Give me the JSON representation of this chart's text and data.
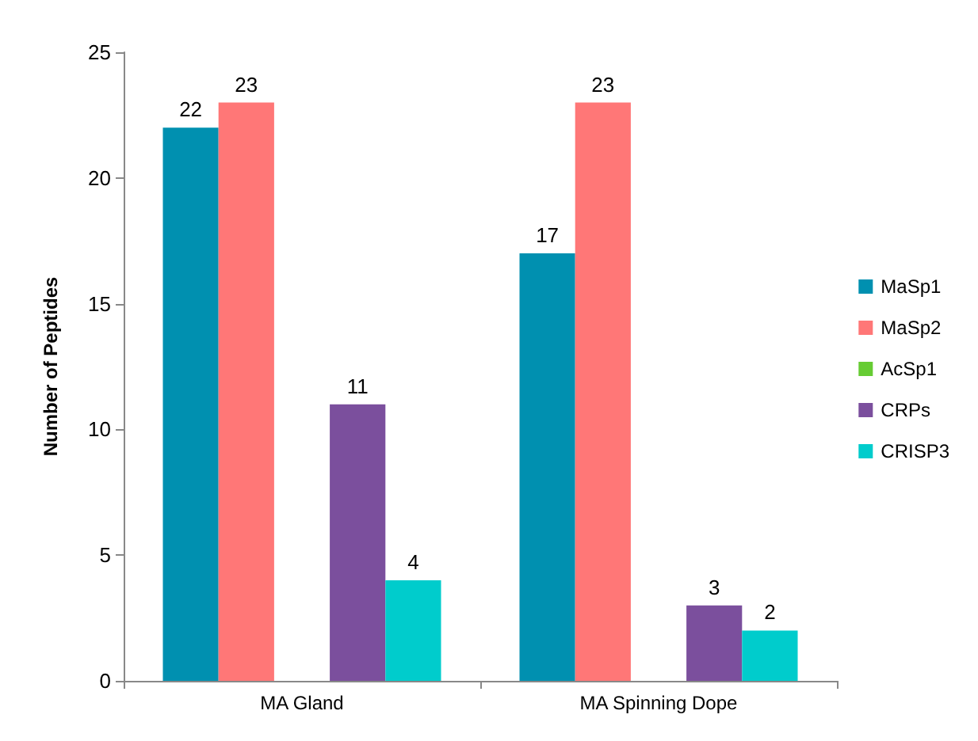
{
  "chart_data": {
    "type": "bar",
    "ylabel": "Number of Peptides",
    "categories": [
      "MA Gland",
      "MA Spinning Dope"
    ],
    "series": [
      {
        "name": "MaSp1",
        "color": "#0090b0",
        "values": [
          22,
          17
        ],
        "value_labels": [
          "22",
          "17"
        ]
      },
      {
        "name": "MaSp2",
        "color": "#ff7777",
        "values": [
          23,
          23
        ],
        "value_labels": [
          "23",
          "23"
        ]
      },
      {
        "name": "AcSp1",
        "color": "#66cc33",
        "values": [
          0,
          0
        ],
        "value_labels": [
          null,
          null
        ]
      },
      {
        "name": "CRPs",
        "color": "#7b4f9d",
        "values": [
          11,
          3
        ],
        "value_labels": [
          "11",
          "3"
        ]
      },
      {
        "name": "CRISP3",
        "color": "#00cccc",
        "values": [
          4,
          2
        ],
        "value_labels": [
          "4",
          "2"
        ]
      }
    ],
    "ylim": [
      0,
      25
    ],
    "yticks": [
      0,
      5,
      10,
      15,
      20,
      25
    ],
    "grid": false,
    "legend": "right"
  }
}
